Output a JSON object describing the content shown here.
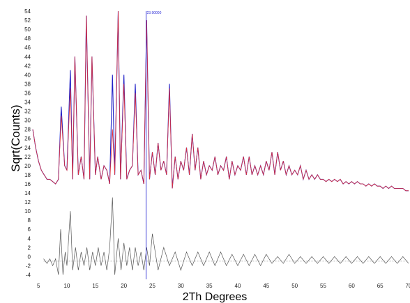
{
  "chart_data": {
    "type": "line",
    "xlabel": "2Th Degrees",
    "ylabel": "Sqrt(Counts)",
    "xlim": [
      4,
      70
    ],
    "ylim": [
      -5,
      54
    ],
    "x_ticks": [
      5,
      10,
      15,
      20,
      25,
      30,
      35,
      40,
      45,
      50,
      55,
      60,
      65,
      70
    ],
    "y_ticks": [
      -4,
      -2,
      0,
      2,
      4,
      6,
      8,
      10,
      12,
      14,
      16,
      18,
      20,
      22,
      24,
      26,
      28,
      30,
      32,
      34,
      36,
      38,
      40,
      42,
      44,
      46,
      48,
      50,
      52,
      54
    ],
    "grid": false,
    "cursor": {
      "x": 23.9,
      "label": "23.90000"
    },
    "colors": {
      "observed": "#2323c8",
      "calculated": "#e0303a",
      "difference": "#555555",
      "cursor": "#3b3bd8",
      "baseline": "#999999"
    },
    "series": [
      {
        "role": "observed",
        "x": [
          4.0,
          4.5,
          5.0,
          5.5,
          6.0,
          6.5,
          7.0,
          7.5,
          8.0,
          8.5,
          9.0,
          9.6,
          10.0,
          10.6,
          11.0,
          11.4,
          12.0,
          12.5,
          13.0,
          13.4,
          14.0,
          14.4,
          15.0,
          15.4,
          16.0,
          16.5,
          17.0,
          17.5,
          18.0,
          18.4,
          19.0,
          19.4,
          20.0,
          20.5,
          21.0,
          21.5,
          22.0,
          22.5,
          23.0,
          23.5,
          24.0,
          24.5,
          25.0,
          25.5,
          26.0,
          26.5,
          27.0,
          27.5,
          28.0,
          28.5,
          29.0,
          29.5,
          30.0,
          30.5,
          31.0,
          31.5,
          32.0,
          32.5,
          33.0,
          33.5,
          34.0,
          34.5,
          35.0,
          35.5,
          36.0,
          36.5,
          37.0,
          37.5,
          38.0,
          38.5,
          39.0,
          39.5,
          40.0,
          40.5,
          41.0,
          41.5,
          42.0,
          42.5,
          43.0,
          43.5,
          44.0,
          44.5,
          45.0,
          45.5,
          46.0,
          46.5,
          47.0,
          47.5,
          48.0,
          48.5,
          49.0,
          49.5,
          50.0,
          50.5,
          51.0,
          51.5,
          52.0,
          52.5,
          53.0,
          53.5,
          54.0,
          54.5,
          55.0,
          55.5,
          56.0,
          56.5,
          57.0,
          57.5,
          58.0,
          58.5,
          59.0,
          59.5,
          60.0,
          60.5,
          61.0,
          61.5,
          62.0,
          62.5,
          63.0,
          63.5,
          64.0,
          64.5,
          65.0,
          65.5,
          66.0,
          66.5,
          67.0,
          67.5,
          68.0,
          68.5,
          69.0,
          69.5,
          70.0
        ],
        "y": [
          28,
          24,
          21,
          19,
          18,
          17,
          17,
          16.5,
          16,
          17,
          33,
          20,
          19,
          41,
          17,
          44,
          18,
          22,
          17,
          53,
          17,
          44,
          18,
          22,
          17,
          20,
          19,
          16,
          40,
          18,
          54,
          17,
          40,
          17,
          19,
          20,
          38,
          18,
          19,
          16,
          52,
          17,
          23,
          18,
          25,
          19,
          21,
          18,
          38,
          15,
          22,
          17,
          21,
          19,
          24,
          18,
          27,
          19,
          24,
          17,
          21,
          18,
          20,
          19,
          22,
          18,
          20,
          19,
          22,
          17,
          21,
          18,
          20,
          19,
          22,
          18,
          22,
          18,
          20,
          18,
          20,
          18,
          21,
          19,
          23,
          18,
          23,
          19,
          21,
          18,
          20,
          18,
          19,
          18,
          20,
          17,
          19,
          17,
          18,
          17,
          18,
          17,
          17,
          16.5,
          17,
          16.5,
          17,
          16.5,
          17,
          16,
          16.5,
          16,
          16.5,
          16,
          16.5,
          16,
          16,
          15.5,
          16,
          15.5,
          16,
          15.5,
          15.5,
          15,
          15.5,
          15,
          15.5,
          15,
          15,
          15,
          15,
          14.5,
          14.5
        ]
      },
      {
        "role": "calculated",
        "x": [
          4.0,
          4.5,
          5.0,
          5.5,
          6.0,
          6.5,
          7.0,
          7.5,
          8.0,
          8.5,
          9.0,
          9.6,
          10.0,
          10.6,
          11.0,
          11.4,
          12.0,
          12.5,
          13.0,
          13.4,
          14.0,
          14.4,
          15.0,
          15.4,
          16.0,
          16.5,
          17.0,
          17.5,
          18.0,
          18.4,
          19.0,
          19.4,
          20.0,
          20.5,
          21.0,
          21.5,
          22.0,
          22.5,
          23.0,
          23.5,
          24.0,
          24.5,
          25.0,
          25.5,
          26.0,
          26.5,
          27.0,
          27.5,
          28.0,
          28.5,
          29.0,
          29.5,
          30.0,
          30.5,
          31.0,
          31.5,
          32.0,
          32.5,
          33.0,
          33.5,
          34.0,
          34.5,
          35.0,
          35.5,
          36.0,
          36.5,
          37.0,
          37.5,
          38.0,
          38.5,
          39.0,
          39.5,
          40.0,
          40.5,
          41.0,
          41.5,
          42.0,
          42.5,
          43.0,
          43.5,
          44.0,
          44.5,
          45.0,
          45.5,
          46.0,
          46.5,
          47.0,
          47.5,
          48.0,
          48.5,
          49.0,
          49.5,
          50.0,
          50.5,
          51.0,
          51.5,
          52.0,
          52.5,
          53.0,
          53.5,
          54.0,
          54.5,
          55.0,
          55.5,
          56.0,
          56.5,
          57.0,
          57.5,
          58.0,
          58.5,
          59.0,
          59.5,
          60.0,
          60.5,
          61.0,
          61.5,
          62.0,
          62.5,
          63.0,
          63.5,
          64.0,
          64.5,
          65.0,
          65.5,
          66.0,
          66.5,
          67.0,
          67.5,
          68.0,
          68.5,
          69.0,
          69.5,
          70.0
        ],
        "y": [
          28,
          24,
          21,
          19,
          18,
          17,
          17,
          16.5,
          16,
          17,
          31,
          20,
          19,
          37,
          17,
          44,
          18,
          22,
          17,
          53,
          17,
          44,
          18,
          22,
          17,
          20,
          19,
          16,
          28,
          18,
          54,
          17,
          38,
          17,
          19,
          20,
          36,
          18,
          19,
          16,
          52,
          17,
          23,
          18,
          25,
          19,
          21,
          18,
          37,
          15,
          22,
          17,
          21,
          19,
          24,
          18,
          27,
          19,
          24,
          17,
          21,
          18,
          20,
          19,
          22,
          18,
          20,
          19,
          22,
          17,
          21,
          18,
          20,
          19,
          22,
          18,
          22,
          18,
          20,
          18,
          20,
          18,
          21,
          19,
          23,
          18,
          23,
          19,
          21,
          18,
          20,
          18,
          19,
          18,
          20,
          17,
          19,
          17,
          18,
          17,
          18,
          17,
          17,
          16.5,
          17,
          16.5,
          17,
          16.5,
          17,
          16,
          16.5,
          16,
          16.5,
          16,
          16.5,
          16,
          16,
          15.5,
          16,
          15.5,
          16,
          15.5,
          15.5,
          15,
          15.5,
          15,
          15.5,
          15,
          15,
          15,
          15,
          14.5,
          14.5
        ]
      },
      {
        "role": "difference",
        "baseline": -1,
        "x": [
          5.9,
          6.5,
          7.0,
          7.5,
          8.0,
          8.5,
          8.9,
          9.3,
          9.7,
          10.0,
          10.6,
          11.0,
          11.5,
          12.0,
          12.5,
          13.0,
          13.5,
          14.0,
          14.5,
          15.0,
          15.5,
          16.0,
          16.5,
          17.0,
          17.5,
          18.0,
          18.4,
          19.0,
          19.5,
          20.0,
          20.5,
          21.0,
          21.5,
          22.0,
          22.5,
          23.0,
          23.5,
          24.0,
          24.5,
          25.0,
          26.0,
          27.0,
          28.0,
          29.0,
          30.0,
          31.0,
          32.0,
          33.0,
          34.0,
          35.0,
          36.0,
          37.0,
          38.0,
          39.0,
          40.0,
          41.0,
          42.0,
          43.0,
          44.0,
          45.0,
          46.0,
          47.0,
          48.0,
          49.0,
          50.0,
          51.0,
          52.0,
          53.0,
          54.0,
          55.0,
          56.0,
          57.0,
          58.0,
          59.0,
          60.0,
          61.0,
          62.0,
          63.0,
          64.0,
          65.0,
          66.0,
          67.0,
          68.0,
          69.0,
          70.0
        ],
        "y": [
          -0.5,
          -1.5,
          -0.5,
          -2,
          -0.5,
          -4,
          6,
          -4,
          1,
          -2,
          10,
          -3,
          2,
          -3,
          1,
          -2,
          2,
          -3,
          1,
          -2,
          2,
          -2,
          1,
          -3,
          2,
          13,
          -4,
          4,
          -3,
          3,
          -2,
          2,
          -3,
          2,
          -2,
          1,
          -3,
          2,
          -2,
          5,
          -3,
          2,
          -2,
          1,
          -3,
          1,
          -2,
          1,
          -2,
          1,
          -2,
          1,
          -2,
          0.5,
          -2,
          0.5,
          -2,
          0.5,
          -2,
          0.5,
          -1.5,
          0,
          -1.5,
          0.5,
          -1.5,
          0,
          -1.5,
          0,
          -1.5,
          0,
          -1.5,
          0,
          -1.5,
          0,
          -1.5,
          0,
          -1.5,
          0,
          -1.5,
          0,
          -1.5,
          0,
          -1.5,
          0,
          -1.5
        ]
      }
    ]
  }
}
